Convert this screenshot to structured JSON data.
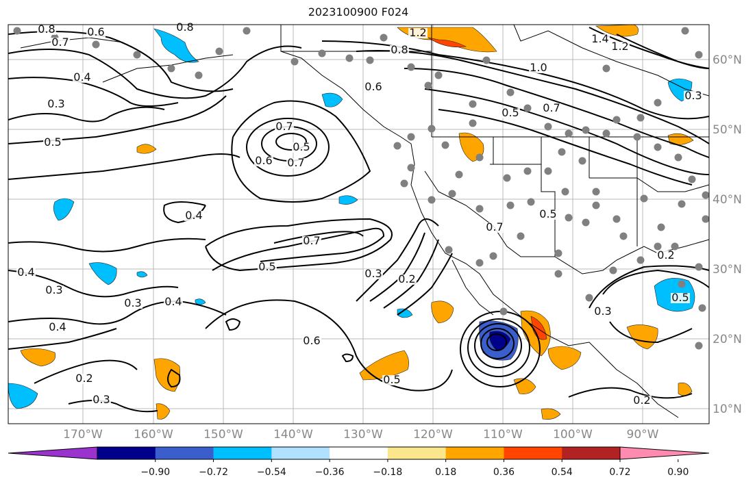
{
  "title": "2023100900 F024",
  "lon_labels": [
    "170°W",
    "160°W",
    "150°W",
    "140°W",
    "130°W",
    "120°W",
    "110°W",
    "100°W",
    "90°W"
  ],
  "lat_labels": [
    "60°N",
    "50°N",
    "40°N",
    "30°N",
    "20°N",
    "10°N"
  ],
  "colorbar": {
    "colors": [
      "#9a32cd",
      "#00008b",
      "#3a5fcd",
      "#00bfff",
      "#b0e2ff",
      "#ffffff",
      "#fbe68c",
      "#ffa500",
      "#ff4500",
      "#b22222",
      "#ff8bb0"
    ],
    "tick_labels": [
      "−0.90",
      "−0.72",
      "−0.54",
      "−0.36",
      "−0.18",
      "0.18",
      "0.36",
      "0.54",
      "0.72",
      "0.90"
    ]
  },
  "contour_labels": [
    "0.8",
    "0.7",
    "0.6",
    "0.8",
    "0.4",
    "0.3",
    "0.5",
    "0.6",
    "0.7",
    "0.7",
    "0.5",
    "0.6",
    "1.2",
    "0.8",
    "1.0",
    "0.7",
    "0.5",
    "1.4",
    "1.2",
    "0.4",
    "0.7",
    "0.5",
    "0.4",
    "0.3",
    "0.3",
    "0.4",
    "0.3",
    "0.3",
    "0.2",
    "0.6",
    "0.7",
    "0.5",
    "0.5",
    "0.4",
    "0.2",
    "0.3",
    "0.3",
    "0.5",
    "0.2",
    "0.2"
  ]
}
